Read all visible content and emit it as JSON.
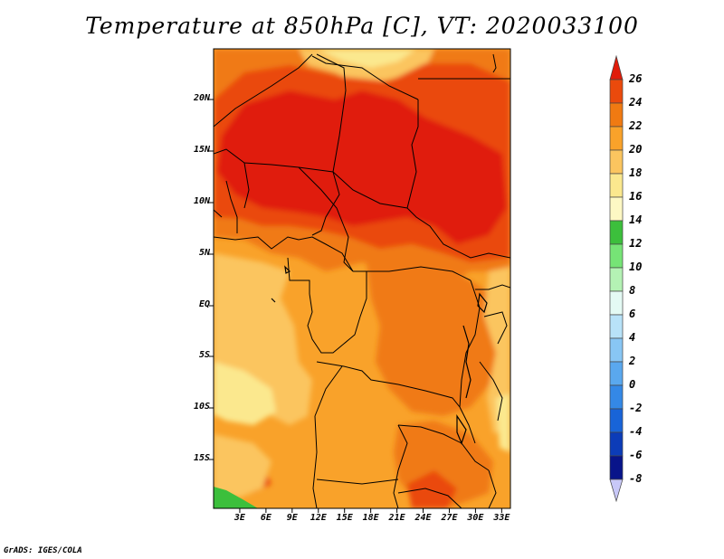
{
  "title": "Temperature at 850hPa [C], VT: 2020033100",
  "footer": "GrADS: IGES/COLA",
  "map": {
    "projection": "latlon",
    "lon_range": [
      0,
      34
    ],
    "lat_range": [
      -20,
      25
    ],
    "y_ticks": [
      "20N",
      "15N",
      "10N",
      "5N",
      "EQ",
      "5S",
      "10S",
      "15S"
    ],
    "x_ticks": [
      "3E",
      "6E",
      "9E",
      "12E",
      "15E",
      "18E",
      "21E",
      "24E",
      "27E",
      "30E",
      "33E"
    ],
    "field_colors": {
      "c16": "#fbe88e",
      "c18": "#fbc55f",
      "c20": "#f9a22a",
      "c22": "#f07a12",
      "c24": "#ea4a0c",
      "c26": "#e01c0a",
      "green": "#3cbf3c",
      "border": "#000000"
    }
  },
  "colorbar": {
    "labels": [
      "26",
      "24",
      "22",
      "20",
      "18",
      "16",
      "14",
      "12",
      "10",
      "8",
      "6",
      "4",
      "2",
      "0",
      "-2",
      "-4",
      "-6",
      "-8"
    ],
    "colors": [
      "#e01c0a",
      "#ea4a0c",
      "#f07a12",
      "#f9a22a",
      "#fbc55f",
      "#fbe88e",
      "#fdf8c4",
      "#3cbf3c",
      "#76e476",
      "#b4f2b4",
      "#e4faf4",
      "#b8e2f8",
      "#88c6f4",
      "#5aa8ee",
      "#3488e6",
      "#1864d8",
      "#0c3cb8",
      "#08148a",
      "#c8c8f8"
    ]
  }
}
